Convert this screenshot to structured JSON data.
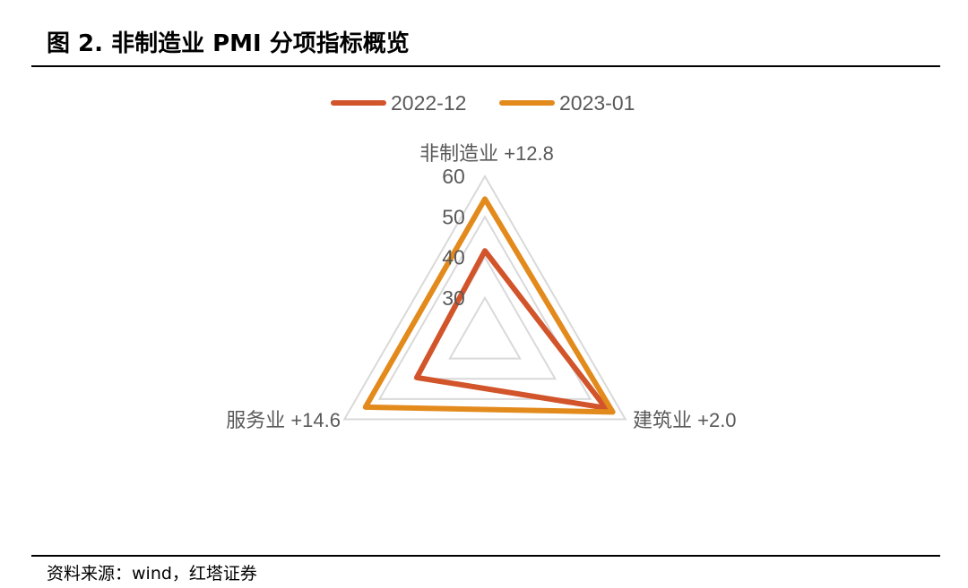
{
  "title": "图 2. 非制造业 PMI 分项指标概览",
  "source": "资料来源：wind，红塔证券",
  "colors": {
    "series_2022_12": "#d2542a",
    "series_2023_01": "#e38a1c",
    "grid": "#d9d9d9",
    "text": "#595959"
  },
  "chart_data": {
    "type": "radar",
    "title": "",
    "categories": [
      "非制造业 +12.8",
      "建筑业 +2.0",
      "服务业 +14.6"
    ],
    "radial_ticks": [
      "30",
      "40",
      "50",
      "60"
    ],
    "rlim": [
      20,
      60
    ],
    "legend_position": "top",
    "series": [
      {
        "name": "2022-12",
        "values": [
          41.6,
          54.4,
          39.4
        ]
      },
      {
        "name": "2023-01",
        "values": [
          54.4,
          56.4,
          54.0
        ]
      }
    ]
  }
}
